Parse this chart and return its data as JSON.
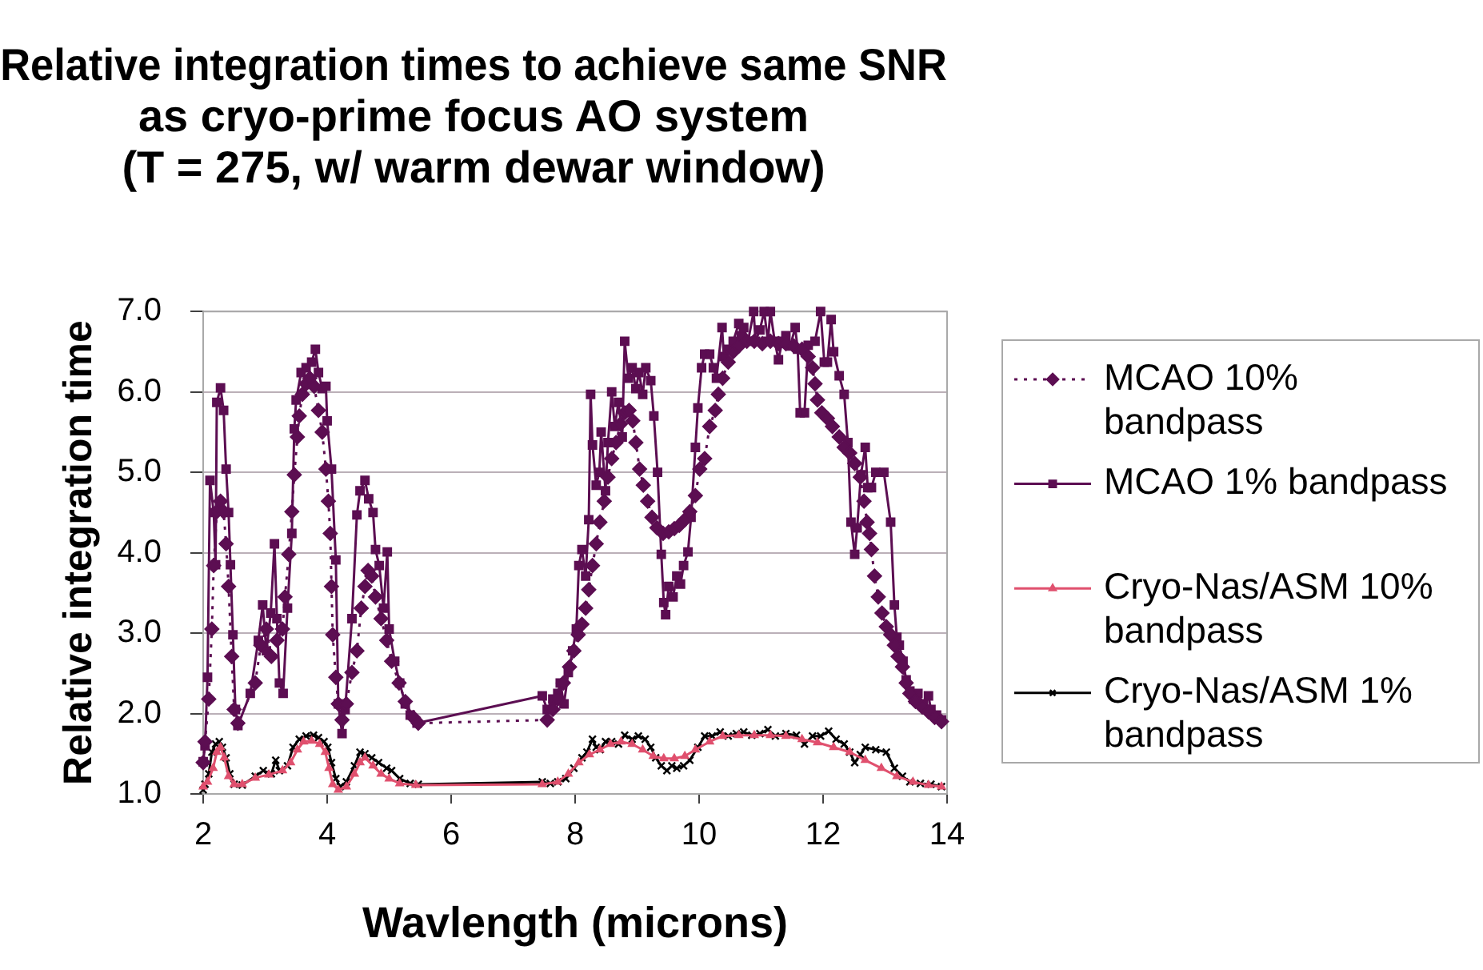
{
  "chart_data": {
    "type": "line",
    "title": "Relative integration times to achieve same SNR\nas cryo-prime focus AO system\n(T = 275, w/ warm dewar window)",
    "xlabel": "Wavlength (microns)",
    "ylabel": "Relative integration time",
    "xlim": [
      2,
      14
    ],
    "xticks": [
      2,
      4,
      6,
      8,
      10,
      12,
      14
    ],
    "ylim": [
      1,
      7
    ],
    "yticks": [
      {
        "value": 1,
        "label": "1.0"
      },
      {
        "value": 2,
        "label": "2.0"
      },
      {
        "value": 3,
        "label": "3.0"
      },
      {
        "value": 4,
        "label": "4.0"
      },
      {
        "value": 5,
        "label": "5.0"
      },
      {
        "value": 6,
        "label": "6.0"
      },
      {
        "value": 7,
        "label": "7.0"
      }
    ],
    "grid": "y",
    "legend": "right",
    "series": [
      {
        "name": "MCAO 10%\nbandpass",
        "color": "#5c0e52",
        "marker": "diamond",
        "line_style": "dotted",
        "x": [
          2.0,
          2.03,
          2.09,
          2.14,
          2.17,
          2.22,
          2.28,
          2.33,
          2.37,
          2.41,
          2.46,
          2.5,
          2.56,
          2.84,
          2.93,
          3.02,
          3.1,
          3.19,
          3.28,
          3.32,
          3.38,
          3.43,
          3.47,
          3.52,
          3.55,
          3.6,
          3.66,
          3.72,
          3.79,
          3.86,
          3.92,
          3.98,
          4.02,
          4.05,
          4.07,
          4.09,
          4.14,
          4.18,
          4.24,
          4.31,
          4.4,
          4.48,
          4.55,
          4.61,
          4.66,
          4.72,
          4.78,
          4.87,
          4.96,
          5.04,
          5.16,
          5.26,
          5.39,
          5.47,
          7.55,
          7.64,
          7.72,
          7.81,
          7.91,
          7.98,
          8.05,
          8.11,
          8.17,
          8.22,
          8.28,
          8.34,
          8.4,
          8.47,
          8.53,
          8.59,
          8.66,
          8.73,
          8.8,
          8.87,
          8.93,
          8.98,
          9.04,
          9.1,
          9.17,
          9.24,
          9.32,
          9.42,
          9.51,
          9.6,
          9.68,
          9.77,
          9.85,
          9.94,
          10.01,
          10.09,
          10.17,
          10.26,
          10.31,
          10.38,
          10.47,
          10.55,
          10.64,
          10.77,
          10.89,
          11.02,
          11.15,
          11.28,
          11.4,
          11.53,
          11.66,
          11.76,
          11.83,
          11.87,
          11.91,
          11.98,
          12.07,
          12.15,
          12.26,
          12.34,
          12.43,
          12.51,
          12.6,
          12.66,
          12.71,
          12.75,
          12.78,
          12.83,
          12.89,
          12.95,
          13.02,
          13.09,
          13.15,
          13.21,
          13.28,
          13.34,
          13.4,
          13.49,
          13.6,
          13.7,
          13.8,
          13.91
        ],
        "values": [
          1.39,
          1.65,
          2.18,
          3.05,
          3.84,
          4.51,
          4.64,
          4.51,
          4.11,
          3.58,
          2.71,
          2.05,
          1.88,
          2.38,
          2.85,
          3.05,
          2.71,
          2.91,
          3.05,
          3.45,
          3.98,
          4.51,
          4.97,
          5.44,
          5.7,
          5.97,
          6.1,
          6.17,
          6.07,
          5.77,
          5.5,
          5.04,
          4.64,
          4.24,
          3.58,
          2.98,
          2.45,
          2.12,
          1.92,
          2.12,
          2.51,
          2.78,
          3.31,
          3.58,
          3.78,
          3.71,
          3.45,
          3.18,
          2.91,
          2.65,
          2.38,
          2.15,
          1.95,
          1.88,
          1.92,
          2.05,
          2.18,
          2.38,
          2.58,
          2.78,
          2.98,
          3.11,
          3.31,
          3.54,
          3.84,
          4.11,
          4.38,
          4.64,
          4.94,
          5.17,
          5.37,
          5.6,
          5.74,
          5.77,
          5.64,
          5.37,
          5.04,
          4.84,
          4.64,
          4.44,
          4.31,
          4.24,
          4.26,
          4.3,
          4.34,
          4.41,
          4.51,
          4.71,
          5.04,
          5.17,
          5.57,
          5.77,
          5.97,
          6.17,
          6.37,
          6.5,
          6.57,
          6.63,
          6.63,
          6.6,
          6.63,
          6.6,
          6.6,
          6.57,
          6.53,
          6.44,
          6.3,
          6.1,
          5.9,
          5.74,
          5.67,
          5.57,
          5.44,
          5.31,
          5.24,
          5.11,
          4.94,
          4.64,
          4.38,
          4.24,
          4.04,
          3.71,
          3.45,
          3.25,
          3.08,
          2.98,
          2.85,
          2.71,
          2.58,
          2.38,
          2.25,
          2.15,
          2.08,
          2.02,
          1.95,
          1.9
        ]
      },
      {
        "name": "MCAO 1% bandpass",
        "color": "#5c0e52",
        "marker": "square",
        "line_style": "solid",
        "x": [
          2.0,
          2.03,
          2.07,
          2.11,
          2.17,
          2.2,
          2.22,
          2.28,
          2.33,
          2.37,
          2.41,
          2.44,
          2.48,
          2.52,
          2.56,
          2.76,
          2.89,
          2.96,
          3.02,
          3.09,
          3.15,
          3.19,
          3.23,
          3.29,
          3.36,
          3.43,
          3.47,
          3.5,
          3.58,
          3.66,
          3.75,
          3.81,
          3.86,
          3.92,
          3.98,
          4.0,
          4.07,
          4.14,
          4.18,
          4.24,
          4.29,
          4.4,
          4.48,
          4.53,
          4.61,
          4.67,
          4.74,
          4.78,
          4.84,
          4.91,
          4.97,
          5.0,
          5.09,
          5.17,
          5.26,
          5.34,
          5.45,
          7.47,
          7.55,
          7.64,
          7.72,
          7.76,
          7.82,
          7.89,
          7.96,
          8.02,
          8.06,
          8.11,
          8.17,
          8.22,
          8.25,
          8.28,
          8.34,
          8.39,
          8.42,
          8.49,
          8.53,
          8.59,
          8.64,
          8.7,
          8.76,
          8.8,
          8.86,
          8.92,
          8.98,
          9.03,
          9.09,
          9.14,
          9.22,
          9.27,
          9.33,
          9.39,
          9.43,
          9.46,
          9.51,
          9.58,
          9.64,
          9.7,
          9.75,
          9.82,
          9.87,
          9.94,
          9.98,
          10.04,
          10.09,
          10.17,
          10.23,
          10.28,
          10.37,
          10.4,
          10.47,
          10.55,
          10.64,
          10.68,
          10.72,
          10.79,
          10.88,
          10.91,
          10.98,
          11.05,
          11.11,
          11.15,
          11.22,
          11.28,
          11.34,
          11.4,
          11.47,
          11.55,
          11.59,
          11.63,
          11.7,
          11.76,
          11.87,
          11.96,
          12.02,
          12.07,
          12.13,
          12.17,
          12.26,
          12.34,
          12.4,
          12.45,
          12.51,
          12.55,
          12.61,
          12.68,
          12.72,
          12.78,
          12.85,
          12.98,
          13.09,
          13.15,
          13.19,
          13.23,
          13.29,
          13.34,
          13.4,
          13.46,
          13.53,
          13.62,
          13.7,
          13.74,
          13.83,
          13.91
        ],
        "values": [
          1.4,
          1.6,
          2.45,
          4.9,
          4.5,
          3.85,
          5.87,
          6.05,
          5.77,
          5.04,
          4.5,
          3.85,
          2.98,
          2.05,
          1.85,
          2.25,
          2.91,
          3.35,
          2.78,
          3.25,
          4.11,
          3.18,
          2.38,
          2.25,
          3.31,
          4.24,
          5.54,
          5.9,
          6.24,
          6.3,
          6.37,
          6.53,
          6.24,
          6.04,
          6.07,
          5.64,
          5.04,
          3.91,
          2.12,
          1.75,
          2.05,
          3.18,
          4.47,
          4.77,
          4.9,
          4.67,
          4.5,
          4.04,
          3.84,
          3.31,
          4.01,
          3.05,
          2.65,
          2.38,
          2.12,
          1.98,
          1.88,
          2.22,
          2.05,
          2.18,
          2.25,
          2.38,
          2.12,
          2.51,
          2.78,
          3.05,
          3.84,
          4.04,
          3.71,
          4.41,
          5.97,
          5.34,
          4.84,
          5.0,
          5.5,
          4.77,
          5.37,
          6.0,
          5.57,
          5.87,
          5.44,
          6.63,
          6.17,
          6.3,
          6.04,
          6.24,
          5.97,
          6.3,
          6.14,
          5.7,
          5.0,
          3.98,
          3.38,
          3.23,
          3.58,
          3.45,
          3.71,
          3.61,
          3.84,
          4.01,
          4.44,
          5.31,
          5.8,
          6.3,
          6.47,
          6.47,
          6.3,
          6.17,
          6.8,
          6.44,
          6.53,
          6.63,
          6.85,
          6.7,
          6.8,
          6.63,
          7.0,
          6.63,
          6.77,
          7.0,
          6.63,
          7.0,
          6.63,
          6.4,
          6.63,
          6.7,
          6.57,
          6.8,
          6.53,
          5.74,
          5.74,
          6.58,
          6.63,
          7.0,
          6.37,
          6.37,
          6.9,
          6.5,
          6.2,
          5.97,
          5.37,
          4.38,
          3.98,
          4.31,
          4.97,
          5.31,
          4.81,
          4.81,
          5.0,
          5.0,
          4.38,
          3.35,
          2.95,
          2.85,
          2.65,
          2.42,
          2.28,
          2.18,
          2.25,
          2.12,
          2.22,
          2.05,
          1.98,
          1.92
        ]
      },
      {
        "name": "Cryo-Nas/ASM 10%\nbandpass",
        "color": "#e0506e",
        "marker": "triangle",
        "line_style": "solid",
        "x": [
          2.0,
          2.07,
          2.16,
          2.22,
          2.28,
          2.34,
          2.41,
          2.5,
          2.63,
          2.84,
          3.06,
          3.28,
          3.41,
          3.52,
          3.62,
          3.75,
          3.88,
          3.97,
          4.03,
          4.09,
          4.18,
          4.31,
          4.44,
          4.53,
          4.61,
          4.74,
          4.87,
          5.0,
          5.17,
          5.43,
          7.47,
          7.72,
          7.89,
          8.06,
          8.23,
          8.4,
          8.57,
          8.74,
          8.92,
          9.09,
          9.26,
          9.43,
          9.6,
          9.77,
          9.94,
          10.17,
          10.38,
          10.64,
          10.89,
          11.15,
          11.4,
          11.66,
          11.91,
          12.17,
          12.43,
          12.68,
          12.94,
          13.19,
          13.45,
          13.7,
          13.91
        ],
        "values": [
          1.09,
          1.15,
          1.32,
          1.52,
          1.58,
          1.45,
          1.22,
          1.12,
          1.12,
          1.2,
          1.24,
          1.29,
          1.39,
          1.55,
          1.65,
          1.66,
          1.62,
          1.52,
          1.32,
          1.12,
          1.05,
          1.09,
          1.25,
          1.39,
          1.45,
          1.35,
          1.25,
          1.19,
          1.13,
          1.11,
          1.12,
          1.15,
          1.25,
          1.39,
          1.49,
          1.55,
          1.62,
          1.65,
          1.62,
          1.55,
          1.47,
          1.44,
          1.44,
          1.47,
          1.55,
          1.65,
          1.72,
          1.73,
          1.73,
          1.73,
          1.72,
          1.68,
          1.64,
          1.58,
          1.52,
          1.42,
          1.32,
          1.22,
          1.15,
          1.11,
          1.09
        ]
      },
      {
        "name": "Cryo-Nas/ASM 1%\nbandpass",
        "color": "#000000",
        "marker": "cross",
        "line_style": "solid",
        "x": [
          2.0,
          2.03,
          2.09,
          2.14,
          2.2,
          2.26,
          2.31,
          2.37,
          2.43,
          2.5,
          2.63,
          2.84,
          2.97,
          3.1,
          3.17,
          3.23,
          3.36,
          3.45,
          3.55,
          3.66,
          3.78,
          3.86,
          3.95,
          4.01,
          4.07,
          4.14,
          4.21,
          4.31,
          4.44,
          4.53,
          4.61,
          4.72,
          4.83,
          4.96,
          5.04,
          5.17,
          5.34,
          5.47,
          7.47,
          7.6,
          7.72,
          7.85,
          7.98,
          8.11,
          8.19,
          8.28,
          8.34,
          8.4,
          8.49,
          8.59,
          8.7,
          8.8,
          8.92,
          9.02,
          9.13,
          9.22,
          9.3,
          9.39,
          9.48,
          9.56,
          9.64,
          9.75,
          9.85,
          9.98,
          10.09,
          10.21,
          10.34,
          10.47,
          10.6,
          10.72,
          10.85,
          10.98,
          11.11,
          11.23,
          11.4,
          11.57,
          11.7,
          11.83,
          11.96,
          12.09,
          12.21,
          12.34,
          12.43,
          12.51,
          12.6,
          12.68,
          12.85,
          13.02,
          13.15,
          13.28,
          13.4,
          13.57,
          13.74,
          13.91
        ],
        "values": [
          1.05,
          1.12,
          1.25,
          1.52,
          1.62,
          1.65,
          1.58,
          1.45,
          1.25,
          1.12,
          1.11,
          1.22,
          1.29,
          1.25,
          1.42,
          1.29,
          1.35,
          1.58,
          1.68,
          1.72,
          1.73,
          1.7,
          1.65,
          1.58,
          1.39,
          1.19,
          1.09,
          1.15,
          1.35,
          1.52,
          1.5,
          1.45,
          1.39,
          1.32,
          1.29,
          1.19,
          1.13,
          1.12,
          1.15,
          1.13,
          1.15,
          1.19,
          1.32,
          1.45,
          1.52,
          1.68,
          1.58,
          1.55,
          1.65,
          1.65,
          1.62,
          1.73,
          1.68,
          1.72,
          1.68,
          1.58,
          1.45,
          1.35,
          1.29,
          1.35,
          1.32,
          1.35,
          1.42,
          1.58,
          1.72,
          1.72,
          1.77,
          1.72,
          1.75,
          1.77,
          1.73,
          1.75,
          1.8,
          1.72,
          1.75,
          1.73,
          1.62,
          1.72,
          1.72,
          1.78,
          1.68,
          1.62,
          1.52,
          1.39,
          1.49,
          1.58,
          1.55,
          1.52,
          1.32,
          1.22,
          1.15,
          1.13,
          1.12,
          1.09
        ]
      }
    ]
  }
}
